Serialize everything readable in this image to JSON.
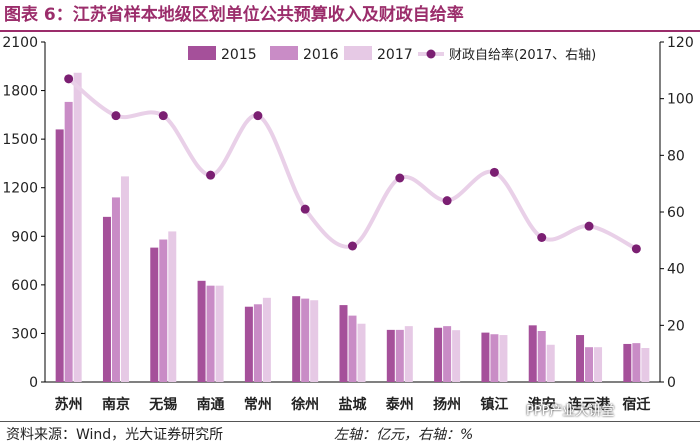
{
  "figure": {
    "title": "图表 6：江苏省样本地级区划单位公共预算收入及财政自给率",
    "source": "资料来源：Wind，光大证券研究所",
    "unit_note": "左轴：亿元，右轴：%",
    "watermark": "PPP产业大讲堂"
  },
  "colors": {
    "title": "#9b2d6b",
    "bar_2015": "#a5509a",
    "bar_2016": "#c98cc6",
    "bar_2017": "#e6c9e5",
    "line_ratio": "#e9d0e8",
    "line_marker": "#7b1f72"
  },
  "chart_data": {
    "type": "bar",
    "categories": [
      "苏州",
      "南京",
      "无锡",
      "南通",
      "常州",
      "徐州",
      "盐城",
      "泰州",
      "扬州",
      "镇江",
      "淮安",
      "连云港",
      "宿迁"
    ],
    "series": [
      {
        "name": "2015",
        "values": [
          1560,
          1020,
          830,
          625,
          465,
          530,
          475,
          322,
          335,
          305,
          350,
          290,
          235
        ]
      },
      {
        "name": "2016",
        "values": [
          1730,
          1140,
          880,
          595,
          480,
          515,
          410,
          322,
          345,
          295,
          315,
          215,
          240
        ]
      },
      {
        "name": "2017",
        "values": [
          1910,
          1270,
          930,
          595,
          520,
          505,
          360,
          345,
          320,
          290,
          230,
          215,
          210
        ]
      }
    ],
    "line_series": {
      "name": "财政自给率(2017、右轴)",
      "values": [
        107,
        94,
        94,
        73,
        94,
        61,
        48,
        72,
        64,
        74,
        51,
        55,
        47
      ]
    },
    "ylim_left": [
      0,
      2100
    ],
    "yticks_left": [
      0,
      300,
      600,
      900,
      1200,
      1500,
      1800,
      2100
    ],
    "ylim_right": [
      0,
      120
    ],
    "yticks_right": [
      0,
      20,
      40,
      60,
      80,
      100,
      120
    ],
    "legend": [
      "2015",
      "2016",
      "2017",
      "财政自给率(2017、右轴)"
    ],
    "legend_position": "top-right",
    "grid": false
  }
}
